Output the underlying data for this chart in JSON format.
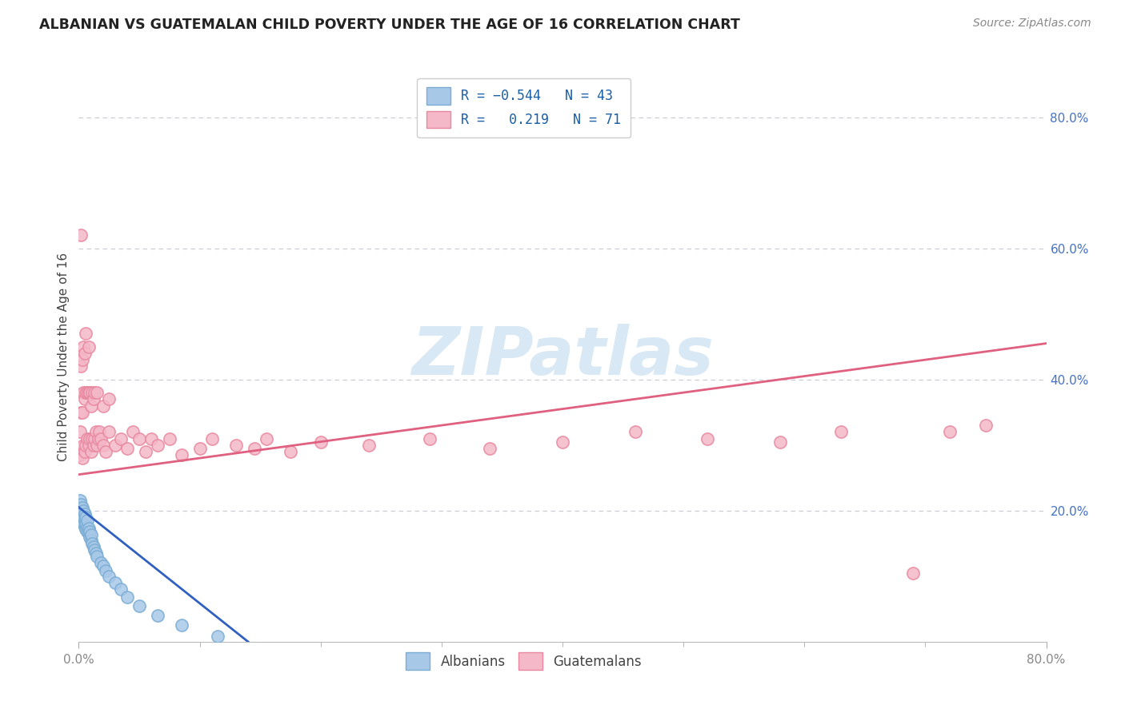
{
  "title": "ALBANIAN VS GUATEMALAN CHILD POVERTY UNDER THE AGE OF 16 CORRELATION CHART",
  "source": "Source: ZipAtlas.com",
  "ylabel": "Child Poverty Under the Age of 16",
  "r_albanian": -0.544,
  "n_albanian": 43,
  "r_guatemalan": 0.219,
  "n_guatemalan": 71,
  "albanian_dot_color": "#a8c8e8",
  "albanian_edge_color": "#7aadd4",
  "guatemalan_dot_color": "#f4b8c8",
  "guatemalan_edge_color": "#e888a0",
  "albanian_line_color": "#3060c0",
  "guatemalan_line_color": "#e06080",
  "background_color": "#ffffff",
  "watermark_color": "#d8e8f4",
  "grid_color": "#c8c8d8",
  "right_tick_color": "#4472c4",
  "x_tick_color": "#888888",
  "title_color": "#222222",
  "source_color": "#888888",
  "ylabel_color": "#444444",
  "legend_color": "#1a5fa8",
  "bottom_legend_color": "#444444",
  "xlim": [
    0.0,
    0.8
  ],
  "ylim": [
    0.0,
    0.87
  ],
  "x_ticks": [
    0.0,
    0.8
  ],
  "x_tick_minor": [
    0.1,
    0.2,
    0.3,
    0.4,
    0.5,
    0.6,
    0.7
  ],
  "y_ticks_right": [
    0.2,
    0.4,
    0.6,
    0.8
  ],
  "alb_x": [
    0.001,
    0.001,
    0.001,
    0.002,
    0.002,
    0.002,
    0.003,
    0.003,
    0.003,
    0.004,
    0.004,
    0.004,
    0.005,
    0.005,
    0.005,
    0.006,
    0.006,
    0.006,
    0.007,
    0.007,
    0.007,
    0.008,
    0.008,
    0.009,
    0.009,
    0.01,
    0.01,
    0.011,
    0.012,
    0.013,
    0.014,
    0.015,
    0.018,
    0.02,
    0.022,
    0.025,
    0.03,
    0.035,
    0.04,
    0.05,
    0.065,
    0.085,
    0.115
  ],
  "alb_y": [
    0.195,
    0.205,
    0.215,
    0.19,
    0.2,
    0.21,
    0.185,
    0.195,
    0.205,
    0.18,
    0.19,
    0.2,
    0.175,
    0.185,
    0.195,
    0.172,
    0.18,
    0.19,
    0.168,
    0.175,
    0.185,
    0.165,
    0.173,
    0.16,
    0.168,
    0.155,
    0.163,
    0.15,
    0.145,
    0.14,
    0.135,
    0.13,
    0.12,
    0.115,
    0.108,
    0.1,
    0.09,
    0.08,
    0.068,
    0.055,
    0.04,
    0.025,
    0.008
  ],
  "guat_x": [
    0.001,
    0.001,
    0.002,
    0.002,
    0.002,
    0.003,
    0.003,
    0.003,
    0.004,
    0.004,
    0.004,
    0.005,
    0.005,
    0.005,
    0.006,
    0.006,
    0.006,
    0.007,
    0.007,
    0.008,
    0.008,
    0.008,
    0.009,
    0.009,
    0.01,
    0.01,
    0.011,
    0.011,
    0.012,
    0.012,
    0.013,
    0.013,
    0.014,
    0.015,
    0.015,
    0.016,
    0.017,
    0.018,
    0.02,
    0.02,
    0.022,
    0.025,
    0.025,
    0.03,
    0.035,
    0.04,
    0.045,
    0.05,
    0.055,
    0.06,
    0.065,
    0.075,
    0.085,
    0.1,
    0.11,
    0.13,
    0.145,
    0.155,
    0.175,
    0.2,
    0.24,
    0.29,
    0.34,
    0.4,
    0.46,
    0.52,
    0.58,
    0.63,
    0.69,
    0.72,
    0.75
  ],
  "guat_y": [
    0.285,
    0.32,
    0.35,
    0.42,
    0.62,
    0.28,
    0.35,
    0.43,
    0.3,
    0.38,
    0.45,
    0.29,
    0.37,
    0.44,
    0.3,
    0.38,
    0.47,
    0.31,
    0.38,
    0.3,
    0.38,
    0.45,
    0.31,
    0.38,
    0.29,
    0.36,
    0.31,
    0.38,
    0.3,
    0.37,
    0.31,
    0.38,
    0.32,
    0.3,
    0.38,
    0.31,
    0.32,
    0.31,
    0.3,
    0.36,
    0.29,
    0.32,
    0.37,
    0.3,
    0.31,
    0.295,
    0.32,
    0.31,
    0.29,
    0.31,
    0.3,
    0.31,
    0.285,
    0.295,
    0.31,
    0.3,
    0.295,
    0.31,
    0.29,
    0.305,
    0.3,
    0.31,
    0.295,
    0.305,
    0.32,
    0.31,
    0.305,
    0.32,
    0.105,
    0.32,
    0.33
  ],
  "alb_line_x0": 0.0,
  "alb_line_x1": 0.14,
  "alb_line_y0": 0.205,
  "alb_line_y1": 0.0,
  "guat_line_x0": 0.0,
  "guat_line_x1": 0.8,
  "guat_line_y0": 0.255,
  "guat_line_y1": 0.455
}
